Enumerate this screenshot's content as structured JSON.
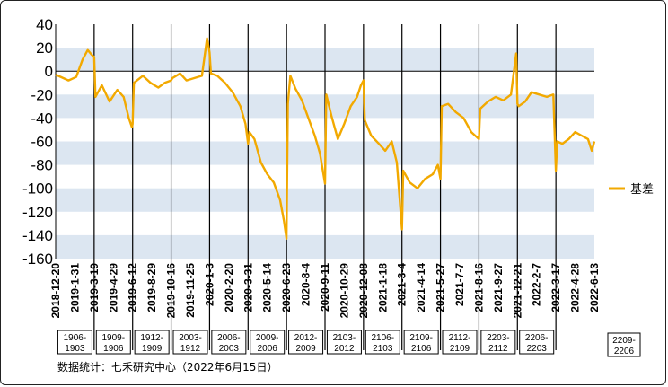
{
  "source": "数据统计：七禾研究中心（2022年6月15日）",
  "chart_data": {
    "type": "line",
    "ylim": [
      -160,
      40
    ],
    "y_ticks": [
      40,
      20,
      0,
      -20,
      -40,
      -60,
      -80,
      -100,
      -120,
      -140,
      -160
    ],
    "bands": [
      [
        20,
        0
      ],
      [
        -20,
        -40
      ],
      [
        -60,
        -80
      ],
      [
        -100,
        -120
      ],
      [
        -140,
        -160
      ]
    ],
    "x_ticks": [
      "2018-12-20",
      "2019-1-31",
      "2019-3-19",
      "2019-4-29",
      "2019-6-12",
      "2019-8-29",
      "2019-10-16",
      "2019-11-25",
      "2020-1-3",
      "2020-2-20",
      "2020-3-31",
      "2020-5-14",
      "2020-6-23",
      "2020-8-4",
      "2020-9-11",
      "2020-10-29",
      "2020-12-08",
      "2021-1-18",
      "2021-3-4",
      "2021-4-14",
      "2021-5-27",
      "2021-7-7",
      "2021-8-16",
      "2021-9-27",
      "2021-12-21",
      "2022-2-7",
      "2022-3-17",
      "2022-4-28",
      "2022-6-13"
    ],
    "contracts": [
      {
        "label": "1906-\n1903",
        "start": 0,
        "end": 3
      },
      {
        "label": "1909-\n1906",
        "start": 3,
        "end": 6
      },
      {
        "label": "1912-\n1909",
        "start": 6,
        "end": 9
      },
      {
        "label": "2003-\n1912",
        "start": 9,
        "end": 12
      },
      {
        "label": "2006-\n2003",
        "start": 12,
        "end": 15
      },
      {
        "label": "2009-\n2006",
        "start": 15,
        "end": 18
      },
      {
        "label": "2012-\n2009",
        "start": 18,
        "end": 21
      },
      {
        "label": "2103-\n2012",
        "start": 21,
        "end": 24
      },
      {
        "label": "2106-\n2103",
        "start": 24,
        "end": 27
      },
      {
        "label": "2109-\n2106",
        "start": 27,
        "end": 30
      },
      {
        "label": "2112-\n2109",
        "start": 30,
        "end": 33
      },
      {
        "label": "2203-\n2112",
        "start": 33,
        "end": 36
      },
      {
        "label": "2206-\n2203",
        "start": 36,
        "end": 39
      },
      {
        "label": "2209-\n2206",
        "start": 39,
        "end": 42
      }
    ],
    "series": [
      {
        "name": "基差",
        "color": "#F2A900",
        "values": [
          [
            0,
            -3
          ],
          [
            1,
            -8
          ],
          [
            1.6,
            -5
          ],
          [
            2.1,
            10
          ],
          [
            2.5,
            18
          ],
          [
            2.8,
            14
          ],
          [
            3,
            12
          ],
          [
            3.1,
            -22
          ],
          [
            3.6,
            -12
          ],
          [
            4.2,
            -26
          ],
          [
            4.8,
            -16
          ],
          [
            5.3,
            -22
          ],
          [
            5.7,
            -40
          ],
          [
            5.95,
            -48
          ],
          [
            6,
            -45
          ],
          [
            6.1,
            -10
          ],
          [
            6.8,
            -4
          ],
          [
            7.4,
            -10
          ],
          [
            8,
            -14
          ],
          [
            8.5,
            -10
          ],
          [
            9,
            -8
          ],
          [
            9.1,
            -6
          ],
          [
            9.7,
            -2
          ],
          [
            10.2,
            -8
          ],
          [
            10.8,
            -6
          ],
          [
            11.4,
            -4
          ],
          [
            11.8,
            28
          ],
          [
            12,
            16
          ],
          [
            12.1,
            -2
          ],
          [
            12.6,
            -4
          ],
          [
            13.2,
            -10
          ],
          [
            13.8,
            -18
          ],
          [
            14.4,
            -30
          ],
          [
            14.8,
            -45
          ],
          [
            15,
            -62
          ],
          [
            15.1,
            -52
          ],
          [
            15.5,
            -58
          ],
          [
            16,
            -78
          ],
          [
            16.5,
            -88
          ],
          [
            17,
            -95
          ],
          [
            17.5,
            -110
          ],
          [
            17.8,
            -128
          ],
          [
            18,
            -143
          ],
          [
            18.1,
            -28
          ],
          [
            18.3,
            -4
          ],
          [
            18.7,
            -15
          ],
          [
            19.2,
            -25
          ],
          [
            19.7,
            -40
          ],
          [
            20.2,
            -55
          ],
          [
            20.6,
            -70
          ],
          [
            21,
            -96
          ],
          [
            21.1,
            -20
          ],
          [
            21.5,
            -38
          ],
          [
            22,
            -58
          ],
          [
            22.5,
            -45
          ],
          [
            23,
            -30
          ],
          [
            23.5,
            -22
          ],
          [
            23.8,
            -12
          ],
          [
            24,
            -8
          ],
          [
            24.1,
            -42
          ],
          [
            24.6,
            -55
          ],
          [
            25.2,
            -62
          ],
          [
            25.7,
            -68
          ],
          [
            26.2,
            -60
          ],
          [
            26.6,
            -78
          ],
          [
            27,
            -135
          ],
          [
            27.1,
            -85
          ],
          [
            27.6,
            -95
          ],
          [
            28.2,
            -100
          ],
          [
            28.8,
            -92
          ],
          [
            29.4,
            -88
          ],
          [
            29.8,
            -80
          ],
          [
            30,
            -92
          ],
          [
            30.1,
            -30
          ],
          [
            30.6,
            -28
          ],
          [
            31.2,
            -35
          ],
          [
            31.8,
            -40
          ],
          [
            32.4,
            -52
          ],
          [
            33,
            -58
          ],
          [
            33.1,
            -32
          ],
          [
            33.7,
            -26
          ],
          [
            34.3,
            -22
          ],
          [
            34.9,
            -25
          ],
          [
            35.5,
            -20
          ],
          [
            35.9,
            15
          ],
          [
            36,
            -28
          ],
          [
            36.1,
            -30
          ],
          [
            36.6,
            -26
          ],
          [
            37.1,
            -18
          ],
          [
            37.7,
            -20
          ],
          [
            38.3,
            -22
          ],
          [
            38.8,
            -20
          ],
          [
            39,
            -85
          ],
          [
            39.1,
            -60
          ],
          [
            39.5,
            -62
          ],
          [
            40,
            -58
          ],
          [
            40.5,
            -52
          ],
          [
            41,
            -55
          ],
          [
            41.5,
            -58
          ],
          [
            41.8,
            -68
          ],
          [
            42,
            -60
          ]
        ]
      }
    ],
    "legend_position": "right"
  }
}
